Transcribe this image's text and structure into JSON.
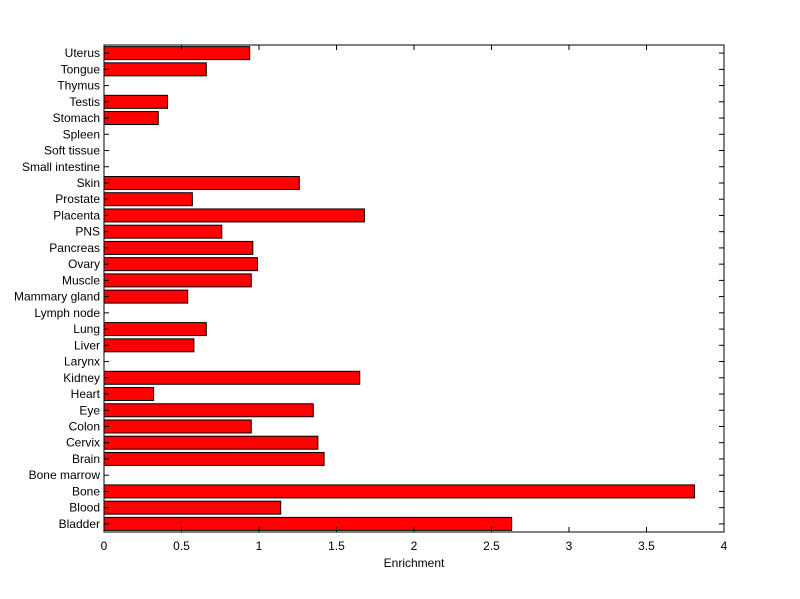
{
  "chart_data": {
    "type": "bar",
    "orientation": "horizontal",
    "title": "",
    "xlabel": "Enrichment",
    "ylabel": "",
    "xlim": [
      0,
      4
    ],
    "xticks": [
      0,
      0.5,
      1,
      1.5,
      2,
      2.5,
      3,
      3.5,
      4
    ],
    "xtick_labels": [
      "0",
      "0.5",
      "1",
      "1.5",
      "2",
      "2.5",
      "3",
      "3.5",
      "4"
    ],
    "grid": false,
    "bar_color": "#ff0000",
    "bar_edge_color": "#000000",
    "categories": [
      "Bladder",
      "Blood",
      "Bone",
      "Bone marrow",
      "Brain",
      "Cervix",
      "Colon",
      "Eye",
      "Heart",
      "Kidney",
      "Larynx",
      "Liver",
      "Lung",
      "Lymph node",
      "Mammary gland",
      "Muscle",
      "Ovary",
      "Pancreas",
      "PNS",
      "Placenta",
      "Prostate",
      "Skin",
      "Small intestine",
      "Soft tissue",
      "Spleen",
      "Stomach",
      "Testis",
      "Thymus",
      "Tongue",
      "Uterus"
    ],
    "values": [
      2.63,
      1.14,
      3.81,
      0,
      1.42,
      1.38,
      0.95,
      1.35,
      0.32,
      1.65,
      0,
      0.58,
      0.66,
      0,
      0.54,
      0.95,
      0.99,
      0.96,
      0.76,
      1.68,
      0.57,
      1.26,
      0,
      0,
      0,
      0.35,
      0.41,
      0,
      0.66,
      0.94
    ]
  }
}
